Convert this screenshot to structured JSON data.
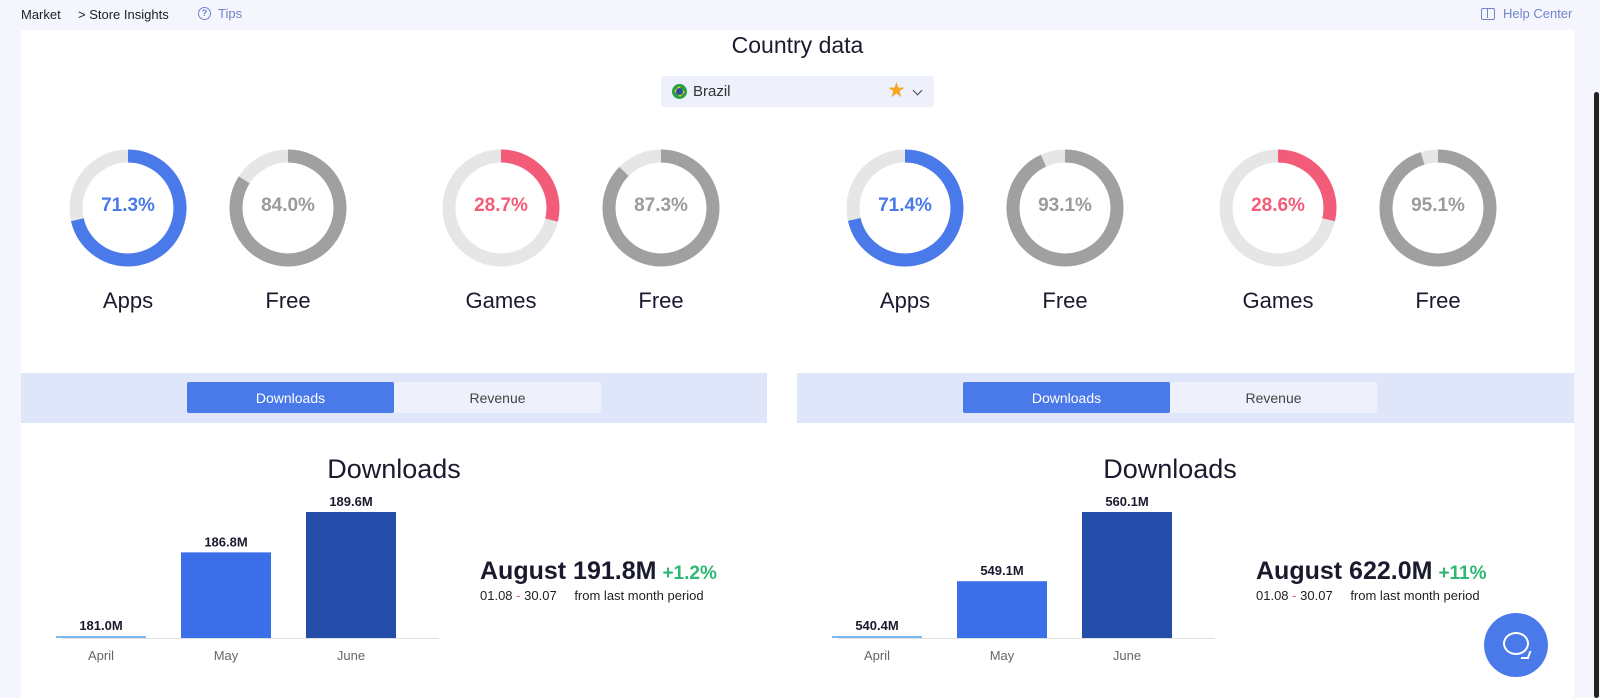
{
  "breadcrumb": {
    "market": "Market",
    "store": "> Store Insights"
  },
  "tips": {
    "label": "Tips",
    "icon": "question-circle-icon"
  },
  "help": {
    "label": "Help Center",
    "icon": "book-icon"
  },
  "title": "Country data",
  "country_select": {
    "value": "Brazil",
    "flag_icon": "brazil-flag-icon",
    "favorite_icon": "star-icon"
  },
  "donuts": [
    {
      "value": "71.3%",
      "fraction": 0.713,
      "label": "Apps",
      "color": "#4a79ea"
    },
    {
      "value": "84.0%",
      "fraction": 0.84,
      "label": "Free",
      "color": "#a0a0a0"
    },
    {
      "value": "28.7%",
      "fraction": 0.287,
      "label": "Games",
      "color": "#f35c78"
    },
    {
      "value": "87.3%",
      "fraction": 0.873,
      "label": "Free",
      "color": "#a0a0a0"
    },
    {
      "value": "71.4%",
      "fraction": 0.714,
      "label": "Apps",
      "color": "#4a79ea"
    },
    {
      "value": "93.1%",
      "fraction": 0.931,
      "label": "Free",
      "color": "#a0a0a0"
    },
    {
      "value": "28.6%",
      "fraction": 0.286,
      "label": "Games",
      "color": "#f35c78"
    },
    {
      "value": "95.1%",
      "fraction": 0.951,
      "label": "Free",
      "color": "#a0a0a0"
    }
  ],
  "panels": [
    {
      "tabs": {
        "downloads": "Downloads",
        "revenue": "Revenue"
      },
      "heading": "Downloads",
      "summary": {
        "month": "August 191.8M",
        "change": "+1.2%",
        "start": "01.08",
        "dash": "-",
        "end": "30.07",
        "from": "from last month period"
      }
    },
    {
      "tabs": {
        "downloads": "Downloads",
        "revenue": "Revenue"
      },
      "heading": "Downloads",
      "summary": {
        "month": "August 622.0M",
        "change": "+11%",
        "start": "01.08",
        "dash": "-",
        "end": "30.07",
        "from": "from last month period"
      }
    }
  ],
  "chart_data": [
    {
      "type": "bar",
      "categories": [
        "April",
        "May",
        "June"
      ],
      "values": [
        181.0,
        186.8,
        189.6
      ],
      "value_labels": [
        "181.0M",
        "186.8M",
        "189.6M"
      ],
      "ylim": [
        181.0,
        189.6
      ],
      "colors": [
        "#7ab8ee",
        "#3b6fea",
        "#234da8"
      ],
      "title": "",
      "xlabel": "",
      "ylabel": ""
    },
    {
      "type": "bar",
      "categories": [
        "April",
        "May",
        "June"
      ],
      "values": [
        540.4,
        549.1,
        560.1
      ],
      "value_labels": [
        "540.4M",
        "549.1M",
        "560.1M"
      ],
      "ylim": [
        540.4,
        560.1
      ],
      "colors": [
        "#7ab8ee",
        "#3b6fea",
        "#234da8"
      ],
      "title": "",
      "xlabel": "",
      "ylabel": ""
    }
  ],
  "chat": {
    "icon": "chat-bubble-icon"
  }
}
